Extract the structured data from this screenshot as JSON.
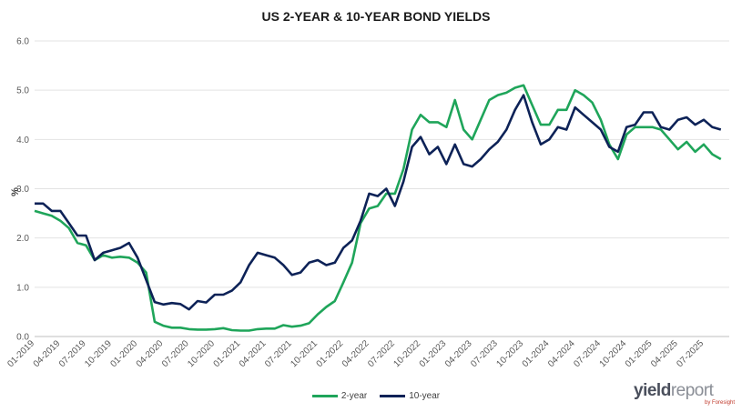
{
  "chart_data": {
    "type": "line",
    "title": "US 2-YEAR & 10-YEAR BOND YIELDS",
    "ylabel": "%",
    "xlabel": "",
    "ylim": [
      0.0,
      6.0
    ],
    "yticks": [
      "0.0",
      "1.0",
      "2.0",
      "3.0",
      "4.0",
      "5.0",
      "6.0"
    ],
    "xticks": [
      "01-2019",
      "04-2019",
      "07-2019",
      "10-2019",
      "01-2020",
      "04-2020",
      "07-2020",
      "10-2020",
      "01-2021",
      "04-2021",
      "07-2021",
      "10-2021",
      "01-2022",
      "04-2022",
      "07-2022",
      "10-2022",
      "01-2023",
      "04-2023",
      "07-2023",
      "10-2023",
      "01-2024",
      "04-2024",
      "07-2024",
      "10-2024",
      "01-2025",
      "04-2025",
      "07-2025"
    ],
    "grid": true,
    "legend_position": "bottom",
    "x": [
      "01-2019",
      "02-2019",
      "03-2019",
      "04-2019",
      "05-2019",
      "06-2019",
      "07-2019",
      "08-2019",
      "09-2019",
      "10-2019",
      "11-2019",
      "12-2019",
      "01-2020",
      "02-2020",
      "03-2020",
      "04-2020",
      "05-2020",
      "06-2020",
      "07-2020",
      "08-2020",
      "09-2020",
      "10-2020",
      "11-2020",
      "12-2020",
      "01-2021",
      "02-2021",
      "03-2021",
      "04-2021",
      "05-2021",
      "06-2021",
      "07-2021",
      "08-2021",
      "09-2021",
      "10-2021",
      "11-2021",
      "12-2021",
      "01-2022",
      "02-2022",
      "03-2022",
      "04-2022",
      "05-2022",
      "06-2022",
      "07-2022",
      "08-2022",
      "09-2022",
      "10-2022",
      "11-2022",
      "12-2022",
      "01-2023",
      "02-2023",
      "03-2023",
      "04-2023",
      "05-2023",
      "06-2023",
      "07-2023",
      "08-2023",
      "09-2023",
      "10-2023",
      "11-2023",
      "12-2023",
      "01-2024",
      "02-2024",
      "03-2024",
      "04-2024",
      "05-2024",
      "06-2024",
      "07-2024",
      "08-2024",
      "09-2024",
      "10-2024",
      "11-2024",
      "12-2024",
      "01-2025",
      "02-2025",
      "03-2025",
      "04-2025",
      "05-2025",
      "06-2025",
      "07-2025",
      "08-2025",
      "09-2025"
    ],
    "series": [
      {
        "name": "2-year",
        "color": "#1fa55a",
        "values": [
          2.55,
          2.5,
          2.45,
          2.35,
          2.2,
          1.9,
          1.85,
          1.55,
          1.65,
          1.6,
          1.62,
          1.6,
          1.5,
          1.3,
          0.3,
          0.22,
          0.18,
          0.18,
          0.15,
          0.14,
          0.14,
          0.15,
          0.17,
          0.13,
          0.12,
          0.12,
          0.15,
          0.16,
          0.16,
          0.23,
          0.2,
          0.22,
          0.27,
          0.45,
          0.6,
          0.72,
          1.1,
          1.5,
          2.3,
          2.6,
          2.65,
          2.9,
          2.9,
          3.4,
          4.2,
          4.5,
          4.35,
          4.35,
          4.25,
          4.8,
          4.2,
          4.0,
          4.4,
          4.8,
          4.9,
          4.95,
          5.05,
          5.1,
          4.7,
          4.3,
          4.3,
          4.6,
          4.6,
          5.0,
          4.9,
          4.75,
          4.4,
          3.9,
          3.6,
          4.1,
          4.25,
          4.25,
          4.25,
          4.2,
          4.0,
          3.8,
          3.95,
          3.75,
          3.9,
          3.7,
          3.6
        ]
      },
      {
        "name": "10-year",
        "color": "#0d2257",
        "values": [
          2.7,
          2.7,
          2.55,
          2.55,
          2.3,
          2.05,
          2.05,
          1.55,
          1.7,
          1.75,
          1.8,
          1.9,
          1.6,
          1.15,
          0.7,
          0.65,
          0.68,
          0.66,
          0.55,
          0.72,
          0.69,
          0.85,
          0.85,
          0.93,
          1.1,
          1.45,
          1.7,
          1.65,
          1.6,
          1.45,
          1.25,
          1.3,
          1.5,
          1.55,
          1.45,
          1.5,
          1.8,
          1.95,
          2.35,
          2.9,
          2.85,
          3.0,
          2.65,
          3.15,
          3.85,
          4.05,
          3.7,
          3.85,
          3.5,
          3.9,
          3.5,
          3.45,
          3.6,
          3.8,
          3.95,
          4.2,
          4.6,
          4.9,
          4.35,
          3.9,
          4.0,
          4.25,
          4.2,
          4.65,
          4.5,
          4.35,
          4.2,
          3.85,
          3.75,
          4.25,
          4.3,
          4.55,
          4.55,
          4.25,
          4.2,
          4.4,
          4.45,
          4.3,
          4.4,
          4.25,
          4.2
        ]
      }
    ]
  },
  "legend": {
    "items": [
      "2-year",
      "10-year"
    ]
  },
  "logo": {
    "part1": "yield",
    "part2": "report",
    "sub": "by Foresight"
  }
}
